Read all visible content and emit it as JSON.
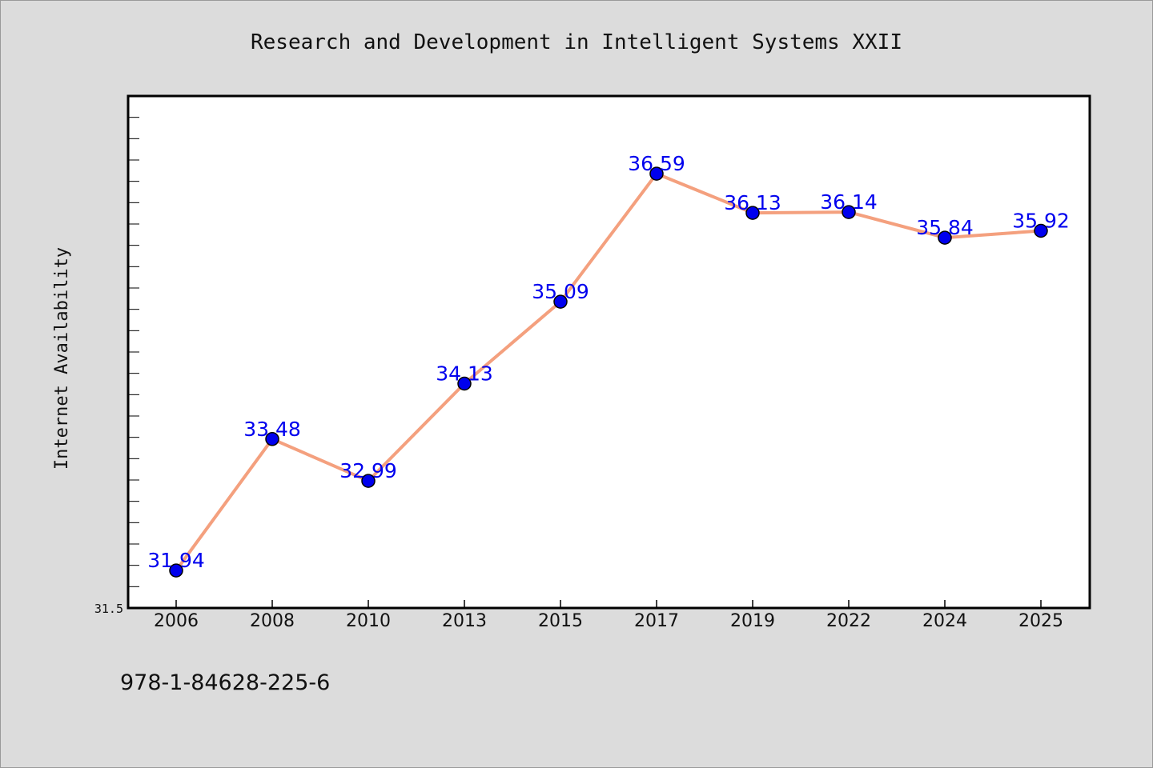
{
  "chart_data": {
    "type": "line",
    "title": "Research and Development in Intelligent Systems XXII",
    "xlabel": "",
    "ylabel": "Internet Availability",
    "categories": [
      "2006",
      "2008",
      "2010",
      "2013",
      "2015",
      "2017",
      "2019",
      "2022",
      "2024",
      "2025"
    ],
    "series": [
      {
        "values": [
          31.94,
          33.48,
          32.99,
          34.13,
          35.09,
          36.59,
          36.13,
          36.14,
          35.84,
          35.92
        ],
        "line_color": "#f4a07e",
        "marker_color": "#0000ee"
      }
    ],
    "data_labels": [
      "31.94",
      "33.48",
      "32.99",
      "34.13",
      "35.09",
      "36.59",
      "36.13",
      "36.14",
      "35.84",
      "35.92"
    ],
    "yticks": [
      31.5
    ],
    "ytick_labels": [
      "31.5"
    ],
    "ylim": [
      31.5,
      37.5
    ],
    "grid": false,
    "legend": "none",
    "label_color": "#0000ee"
  },
  "footer": {
    "isbn": "978-1-84628-225-6"
  }
}
